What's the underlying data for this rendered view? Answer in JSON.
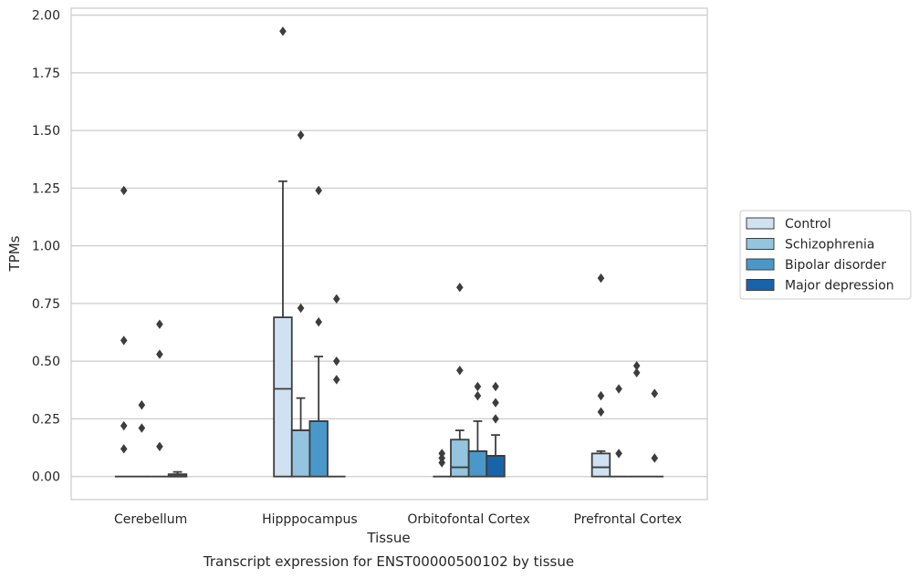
{
  "caption": "Transcript expression for ENST00000500102 by tissue",
  "chart_data": {
    "type": "box",
    "xlabel": "Tissue",
    "ylabel": "TPMs",
    "ylim": [
      -0.1,
      2.03
    ],
    "yticks": [
      "0.00",
      "0.25",
      "0.50",
      "0.75",
      "1.00",
      "1.25",
      "1.50",
      "1.75",
      "2.00"
    ],
    "ytick_values": [
      0,
      0.25,
      0.5,
      0.75,
      1.0,
      1.25,
      1.5,
      1.75,
      2.0
    ],
    "grid": "horizontal",
    "legend_position": "right",
    "categories": [
      "Cerebellum",
      "Hipppocampus",
      "Orbitofontal Cortex",
      "Prefrontal Cortex"
    ],
    "series": [
      {
        "name": "Control",
        "color": "#d0e1f2",
        "boxes": [
          {
            "q1": 0,
            "median": 0,
            "q3": 0,
            "whisker_low": 0,
            "whisker_high": 0,
            "outliers": [
              1.24,
              0.59,
              0.22,
              0.12
            ]
          },
          {
            "q1": 0,
            "median": 0.38,
            "q3": 0.69,
            "whisker_low": 0,
            "whisker_high": 1.28,
            "outliers": [
              1.93
            ]
          },
          {
            "q1": 0,
            "median": 0,
            "q3": 0,
            "whisker_low": 0,
            "whisker_high": 0,
            "outliers": [
              0.1,
              0.08,
              0.06
            ]
          },
          {
            "q1": 0,
            "median": 0.04,
            "q3": 0.1,
            "whisker_low": 0,
            "whisker_high": 0.11,
            "outliers": [
              0.86,
              0.35,
              0.28
            ]
          }
        ]
      },
      {
        "name": "Schizophrenia",
        "color": "#94c4df",
        "boxes": [
          {
            "q1": 0,
            "median": 0,
            "q3": 0,
            "whisker_low": 0,
            "whisker_high": 0,
            "outliers": [
              0.31,
              0.21
            ]
          },
          {
            "q1": 0,
            "median": 0.2,
            "q3": 0.2,
            "whisker_low": 0,
            "whisker_high": 0.34,
            "outliers": [
              1.48,
              0.73
            ]
          },
          {
            "q1": 0,
            "median": 0.04,
            "q3": 0.16,
            "whisker_low": 0,
            "whisker_high": 0.2,
            "outliers": [
              0.82,
              0.46
            ]
          },
          {
            "q1": 0,
            "median": 0,
            "q3": 0,
            "whisker_low": 0,
            "whisker_high": 0,
            "outliers": [
              0.38,
              0.1
            ]
          }
        ]
      },
      {
        "name": "Bipolar disorder",
        "color": "#4a98c9",
        "boxes": [
          {
            "q1": 0,
            "median": 0,
            "q3": 0,
            "whisker_low": 0,
            "whisker_high": 0,
            "outliers": [
              0.66,
              0.53,
              0.13
            ]
          },
          {
            "q1": 0,
            "median": 0.24,
            "q3": 0.24,
            "whisker_low": 0,
            "whisker_high": 0.52,
            "outliers": [
              1.24,
              0.67
            ]
          },
          {
            "q1": 0,
            "median": 0.11,
            "q3": 0.11,
            "whisker_low": 0,
            "whisker_high": 0.24,
            "outliers": [
              0.39,
              0.35
            ]
          },
          {
            "q1": 0,
            "median": 0,
            "q3": 0,
            "whisker_low": 0,
            "whisker_high": 0,
            "outliers": [
              0.48,
              0.45
            ]
          }
        ]
      },
      {
        "name": "Major depression",
        "color": "#1764ab",
        "boxes": [
          {
            "q1": 0,
            "median": 0,
            "q3": 0.01,
            "whisker_low": 0,
            "whisker_high": 0.02,
            "outliers": []
          },
          {
            "q1": 0,
            "median": 0,
            "q3": 0,
            "whisker_low": 0,
            "whisker_high": 0,
            "outliers": [
              0.77,
              0.5,
              0.42
            ]
          },
          {
            "q1": 0,
            "median": 0.09,
            "q3": 0.09,
            "whisker_low": 0,
            "whisker_high": 0.18,
            "outliers": [
              0.39,
              0.32,
              0.25
            ]
          },
          {
            "q1": 0,
            "median": 0,
            "q3": 0,
            "whisker_low": 0,
            "whisker_high": 0,
            "outliers": [
              0.36,
              0.08
            ]
          }
        ]
      }
    ]
  }
}
